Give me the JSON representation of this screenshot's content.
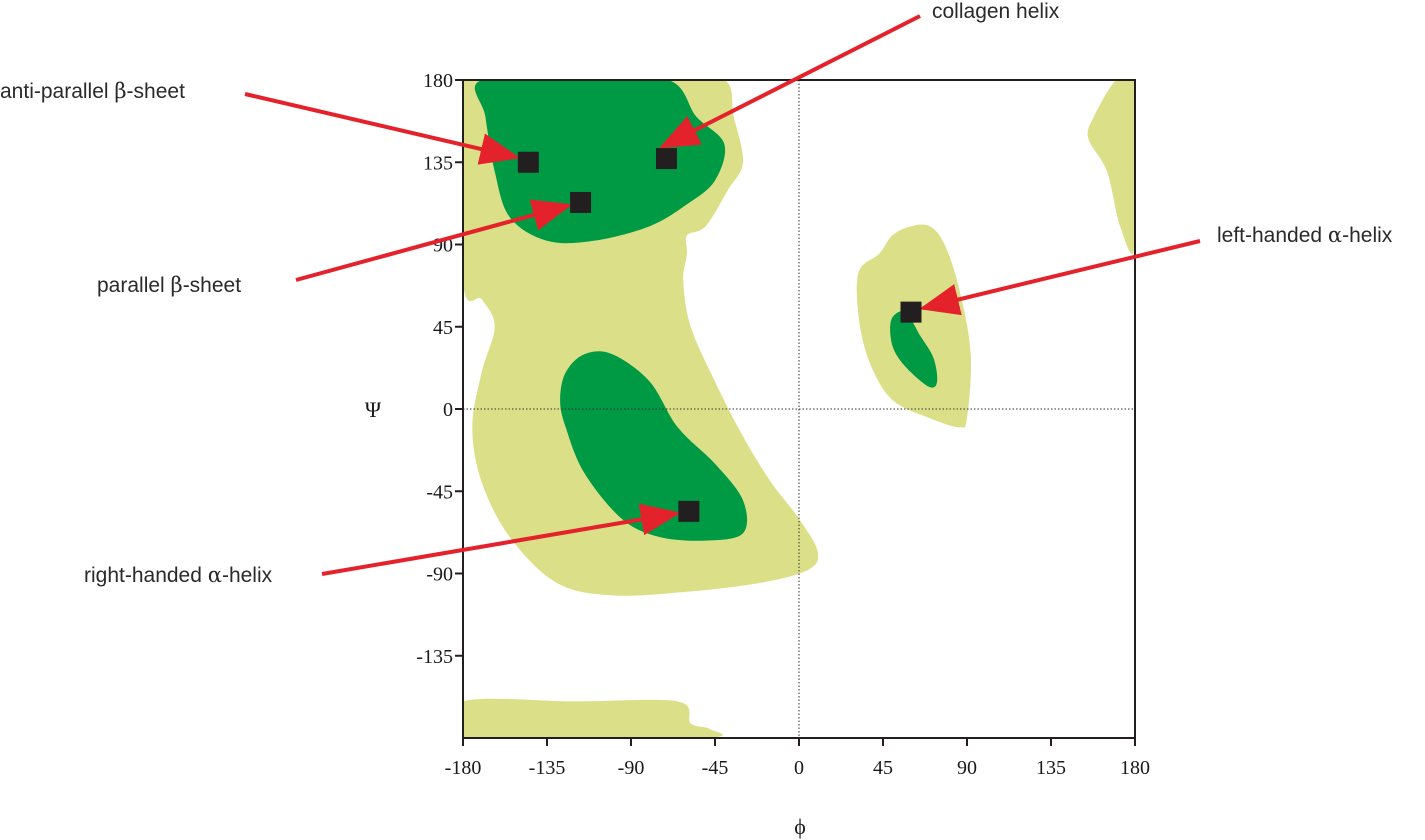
{
  "chart_data": {
    "type": "scatter",
    "title": "",
    "xlabel": "ϕ",
    "ylabel": "Ψ",
    "xlim": [
      -180,
      180
    ],
    "ylim": [
      -180,
      180
    ],
    "xticks": [
      -180,
      -135,
      -90,
      -45,
      0,
      45,
      90,
      135,
      180
    ],
    "yticks": [
      180,
      135,
      90,
      45,
      0,
      -45,
      -90,
      -135
    ],
    "grid": false,
    "zero_lines": true,
    "colors": {
      "allowed": "#dbe088",
      "favored": "#009a44",
      "marker": "#231f20",
      "arrow": "#e4222b"
    },
    "regions": [
      {
        "level": "allowed",
        "outline": [
          [
            -180,
            180
          ],
          [
            -115,
            180
          ],
          [
            -70,
            180
          ],
          [
            -40,
            180
          ],
          [
            -35,
            160
          ],
          [
            -30,
            135
          ],
          [
            -38,
            120
          ],
          [
            -50,
            100
          ],
          [
            -60,
            95
          ],
          [
            -60,
            85
          ],
          [
            -62,
            70
          ],
          [
            -58,
            45
          ],
          [
            -45,
            15
          ],
          [
            -30,
            -15
          ],
          [
            -15,
            -40
          ],
          [
            0,
            -60
          ],
          [
            10,
            -78
          ],
          [
            5,
            -88
          ],
          [
            -20,
            -95
          ],
          [
            -60,
            -100
          ],
          [
            -100,
            -102
          ],
          [
            -130,
            -95
          ],
          [
            -155,
            -70
          ],
          [
            -170,
            -40
          ],
          [
            -175,
            -10
          ],
          [
            -170,
            20
          ],
          [
            -163,
            45
          ],
          [
            -170,
            60
          ],
          [
            -180,
            70
          ]
        ]
      },
      {
        "level": "allowed",
        "outline": [
          [
            -180,
            -160
          ],
          [
            -120,
            -160
          ],
          [
            -65,
            -160
          ],
          [
            -58,
            -172
          ],
          [
            -48,
            -175
          ],
          [
            -52,
            -180
          ],
          [
            -180,
            -180
          ]
        ]
      },
      {
        "level": "allowed",
        "outline": [
          [
            43,
            85
          ],
          [
            50,
            95
          ],
          [
            60,
            100
          ],
          [
            70,
            100
          ],
          [
            78,
            90
          ],
          [
            86,
            65
          ],
          [
            92,
            30
          ],
          [
            90,
            -5
          ],
          [
            86,
            -10
          ],
          [
            70,
            -5
          ],
          [
            50,
            5
          ],
          [
            38,
            25
          ],
          [
            32,
            50
          ],
          [
            32,
            75
          ]
        ]
      },
      {
        "level": "allowed",
        "outline": [
          [
            170,
            180
          ],
          [
            180,
            180
          ],
          [
            180,
            90
          ],
          [
            172,
            100
          ],
          [
            165,
            130
          ],
          [
            155,
            148
          ],
          [
            158,
            160
          ]
        ]
      },
      {
        "level": "favored",
        "outline": [
          [
            -170,
            180
          ],
          [
            -115,
            180
          ],
          [
            -70,
            180
          ],
          [
            -55,
            160
          ],
          [
            -40,
            145
          ],
          [
            -45,
            125
          ],
          [
            -60,
            112
          ],
          [
            -80,
            100
          ],
          [
            -110,
            92
          ],
          [
            -135,
            92
          ],
          [
            -155,
            105
          ],
          [
            -163,
            130
          ],
          [
            -168,
            160
          ]
        ]
      },
      {
        "level": "favored",
        "outline": [
          [
            -125,
            20
          ],
          [
            -115,
            30
          ],
          [
            -100,
            30
          ],
          [
            -80,
            15
          ],
          [
            -65,
            -10
          ],
          [
            -45,
            -30
          ],
          [
            -30,
            -50
          ],
          [
            -30,
            -68
          ],
          [
            -50,
            -72
          ],
          [
            -75,
            -70
          ],
          [
            -95,
            -60
          ],
          [
            -115,
            -35
          ],
          [
            -125,
            -10
          ],
          [
            -128,
            5
          ]
        ]
      },
      {
        "level": "favored",
        "outline": [
          [
            57,
            53
          ],
          [
            65,
            40
          ],
          [
            72,
            28
          ],
          [
            74,
            15
          ],
          [
            70,
            12
          ],
          [
            60,
            20
          ],
          [
            52,
            30
          ],
          [
            49,
            40
          ],
          [
            50,
            50
          ]
        ]
      }
    ],
    "points": [
      {
        "name": "anti-parallel β-sheet",
        "x": -145,
        "y": 135
      },
      {
        "name": "collagen helix",
        "x": -71,
        "y": 137
      },
      {
        "name": "parallel β-sheet",
        "x": -117,
        "y": 113
      },
      {
        "name": "right-handed α-helix",
        "x": -59,
        "y": -56
      },
      {
        "name": "left-handed α-helix",
        "x": 60,
        "y": 53
      }
    ],
    "annotations": [
      {
        "text_pre": "anti-parallel ",
        "greek": "β",
        "text_post": "-sheet"
      },
      {
        "text_pre": "collagen helix",
        "greek": "",
        "text_post": ""
      },
      {
        "text_pre": "parallel ",
        "greek": "β",
        "text_post": "-sheet"
      },
      {
        "text_pre": "right-handed ",
        "greek": "α",
        "text_post": "-helix"
      },
      {
        "text_pre": "left-handed ",
        "greek": "α",
        "text_post": "-helix"
      }
    ]
  }
}
